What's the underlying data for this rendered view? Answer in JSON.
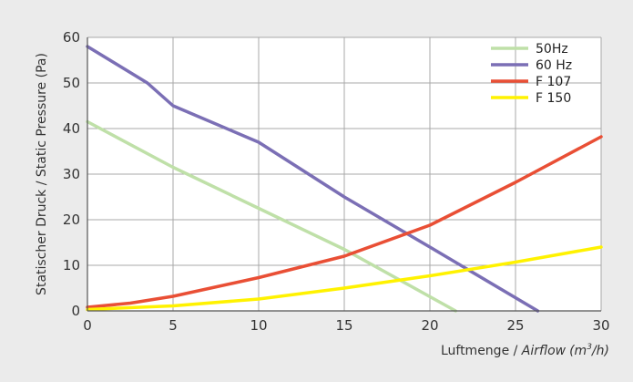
{
  "chart_data": {
    "type": "line",
    "xlabel": "Luftmenge / ",
    "xlabel_italic": "Airflow",
    "xlabel_unit_pre": "(m",
    "xlabel_unit_sup": "3",
    "xlabel_unit_post": "/h)",
    "ylabel": "Statischer Druck / Static Pressure (Pa)",
    "xlim": [
      0,
      30
    ],
    "ylim": [
      0,
      60
    ],
    "xticks": [
      0,
      5,
      10,
      15,
      20,
      25,
      30
    ],
    "yticks": [
      0,
      10,
      20,
      30,
      40,
      50,
      60
    ],
    "grid": true,
    "legend_position": "top-right",
    "series": [
      {
        "name": "50Hz",
        "color": "#bfe0a8",
        "points": [
          [
            0,
            41.5
          ],
          [
            5,
            31.5
          ],
          [
            10,
            22.5
          ],
          [
            15,
            13.5
          ],
          [
            21.5,
            0
          ]
        ]
      },
      {
        "name": "60 Hz",
        "color": "#7b6fb5",
        "points": [
          [
            0,
            58
          ],
          [
            3.5,
            50
          ],
          [
            5,
            45
          ],
          [
            10,
            37
          ],
          [
            15,
            25
          ],
          [
            20,
            14
          ],
          [
            26.3,
            0
          ]
        ]
      },
      {
        "name": "F 107",
        "color": "#e94f35",
        "points": [
          [
            0,
            0.8
          ],
          [
            2.5,
            1.7
          ],
          [
            5,
            3.2
          ],
          [
            10,
            7.3
          ],
          [
            15,
            12
          ],
          [
            20,
            18.8
          ],
          [
            25,
            28.2
          ],
          [
            30,
            38.2
          ]
        ]
      },
      {
        "name": "F 150",
        "color": "#fff200",
        "points": [
          [
            0,
            0.3
          ],
          [
            5,
            1.1
          ],
          [
            10,
            2.6
          ],
          [
            15,
            5
          ],
          [
            20,
            7.7
          ],
          [
            25,
            10.7
          ],
          [
            30,
            14
          ]
        ]
      }
    ]
  }
}
